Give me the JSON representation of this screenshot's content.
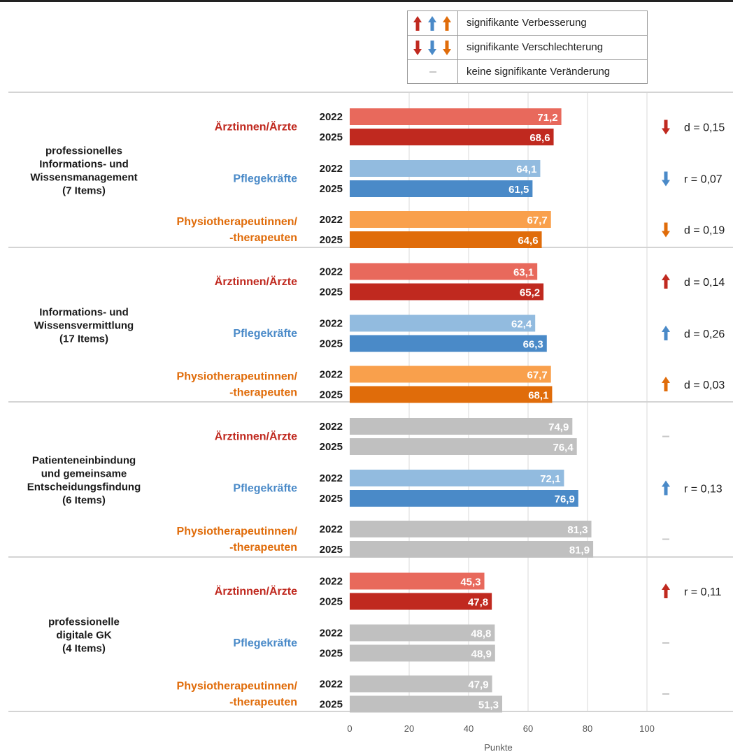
{
  "legend": {
    "improvement": "signifikante Verbesserung",
    "worsening": "signifikante Verschlechterung",
    "no_change": "keine signifikante Veränderung",
    "no_change_symbol": "–"
  },
  "colors": {
    "aerzte": {
      "y2022": "#e8695c",
      "y2025": "#c0291f",
      "label": "#c0291f",
      "arrow": "#c0291f"
    },
    "pflege": {
      "y2022": "#92bbdf",
      "y2025": "#4a8ac8",
      "label": "#4a8ac8",
      "arrow": "#4a8ac8"
    },
    "physio": {
      "y2022": "#f9a04c",
      "y2025": "#e06c0a",
      "label": "#e06c0a",
      "arrow": "#e06c0a"
    },
    "neutral": "#c0c0c0",
    "grid": "#d8d8d8",
    "divider": "#d4d4d4"
  },
  "chart_data": {
    "type": "bar",
    "orientation": "horizontal",
    "xlabel": "Punkte",
    "xlim": [
      0,
      100
    ],
    "xticks": [
      0,
      20,
      40,
      60,
      80,
      100
    ],
    "years": [
      "2022",
      "2025"
    ],
    "groups": [
      {
        "name": "professionelles\nInformations- und\nWissensmanagement\n(7 Items)",
        "professions": [
          {
            "key": "aerzte",
            "label": "Ärztinnen/Ärzte",
            "values": [
              71.2,
              68.6
            ],
            "value_labels": [
              "71,2",
              "68,6"
            ],
            "significant": true,
            "direction": "down",
            "effect": "d = 0,15"
          },
          {
            "key": "pflege",
            "label": "Pflegekräfte",
            "values": [
              64.1,
              61.5
            ],
            "value_labels": [
              "64,1",
              "61,5"
            ],
            "significant": true,
            "direction": "down",
            "effect": "r = 0,07"
          },
          {
            "key": "physio",
            "label": "Physiotherapeutinnen/\n-therapeuten",
            "values": [
              67.7,
              64.6
            ],
            "value_labels": [
              "67,7",
              "64,6"
            ],
            "significant": true,
            "direction": "down",
            "effect": "d = 0,19"
          }
        ]
      },
      {
        "name": "Informations- und\nWissensvermittlung\n(17 Items)",
        "professions": [
          {
            "key": "aerzte",
            "label": "Ärztinnen/Ärzte",
            "values": [
              63.1,
              65.2
            ],
            "value_labels": [
              "63,1",
              "65,2"
            ],
            "significant": true,
            "direction": "up",
            "effect": "d = 0,14"
          },
          {
            "key": "pflege",
            "label": "Pflegekräfte",
            "values": [
              62.4,
              66.3
            ],
            "value_labels": [
              "62,4",
              "66,3"
            ],
            "significant": true,
            "direction": "up",
            "effect": "d = 0,26"
          },
          {
            "key": "physio",
            "label": "Physiotherapeutinnen/\n-therapeuten",
            "values": [
              67.7,
              68.1
            ],
            "value_labels": [
              "67,7",
              "68,1"
            ],
            "significant": true,
            "direction": "up",
            "effect": "d = 0,03"
          }
        ]
      },
      {
        "name": "Patienteneinbindung\nund gemeinsame\nEntscheidungsfindung\n(6 Items)",
        "professions": [
          {
            "key": "aerzte",
            "label": "Ärztinnen/Ärzte",
            "values": [
              74.9,
              76.4
            ],
            "value_labels": [
              "74,9",
              "76,4"
            ],
            "significant": false,
            "direction": "none",
            "effect": ""
          },
          {
            "key": "pflege",
            "label": "Pflegekräfte",
            "values": [
              72.1,
              76.9
            ],
            "value_labels": [
              "72,1",
              "76,9"
            ],
            "significant": true,
            "direction": "up",
            "effect": "r = 0,13"
          },
          {
            "key": "physio",
            "label": "Physiotherapeutinnen/\n-therapeuten",
            "values": [
              81.3,
              81.9
            ],
            "value_labels": [
              "81,3",
              "81,9"
            ],
            "significant": false,
            "direction": "none",
            "effect": ""
          }
        ]
      },
      {
        "name": "professionelle\ndigitale GK\n(4 Items)",
        "professions": [
          {
            "key": "aerzte",
            "label": "Ärztinnen/Ärzte",
            "values": [
              45.3,
              47.8
            ],
            "value_labels": [
              "45,3",
              "47,8"
            ],
            "significant": true,
            "direction": "up",
            "effect": "r = 0,11"
          },
          {
            "key": "pflege",
            "label": "Pflegekräfte",
            "values": [
              48.8,
              48.9
            ],
            "value_labels": [
              "48,8",
              "48,9"
            ],
            "significant": false,
            "direction": "none",
            "effect": ""
          },
          {
            "key": "physio",
            "label": "Physiotherapeutinnen/\n-therapeuten",
            "values": [
              47.9,
              51.3
            ],
            "value_labels": [
              "47,9",
              "51,3"
            ],
            "significant": false,
            "direction": "none",
            "effect": ""
          }
        ]
      }
    ]
  }
}
